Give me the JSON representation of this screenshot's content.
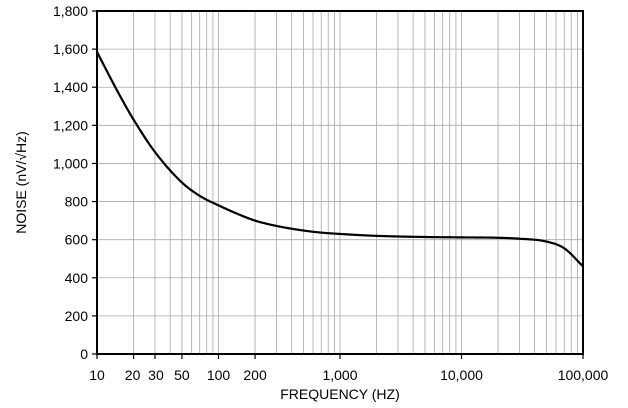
{
  "chart_data": {
    "type": "line",
    "title": "",
    "xlabel": "FREQUENCY (HZ)",
    "ylabel": "NOISE (nV/√Hz)",
    "xscale": "log",
    "xlim": [
      10,
      100000
    ],
    "ylim": [
      0,
      1800
    ],
    "grid": true,
    "x_ticks": [
      {
        "value": 10,
        "label": "10"
      },
      {
        "value": 20,
        "label": "20"
      },
      {
        "value": 30,
        "label": "30"
      },
      {
        "value": 50,
        "label": "50"
      },
      {
        "value": 100,
        "label": "100"
      },
      {
        "value": 200,
        "label": "200"
      },
      {
        "value": 1000,
        "label": "1,000"
      },
      {
        "value": 10000,
        "label": "10,000"
      },
      {
        "value": 100000,
        "label": "100,000"
      }
    ],
    "y_ticks": [
      {
        "value": 0,
        "label": "0"
      },
      {
        "value": 200,
        "label": "200"
      },
      {
        "value": 400,
        "label": "400"
      },
      {
        "value": 600,
        "label": "600"
      },
      {
        "value": 800,
        "label": "800"
      },
      {
        "value": 1000,
        "label": "1,000"
      },
      {
        "value": 1200,
        "label": "1,200"
      },
      {
        "value": 1400,
        "label": "1,400"
      },
      {
        "value": 1600,
        "label": "1,600"
      },
      {
        "value": 1800,
        "label": "1,800"
      }
    ],
    "series": [
      {
        "color": "#000000",
        "x": [
          10,
          15,
          20,
          30,
          50,
          70,
          100,
          150,
          200,
          300,
          500,
          700,
          1000,
          2000,
          5000,
          10000,
          20000,
          30000,
          50000,
          70000,
          100000
        ],
        "y": [
          1585,
          1370,
          1230,
          1060,
          900,
          830,
          780,
          730,
          700,
          672,
          648,
          637,
          630,
          620,
          614,
          612,
          610,
          605,
          590,
          555,
          460
        ]
      }
    ]
  }
}
